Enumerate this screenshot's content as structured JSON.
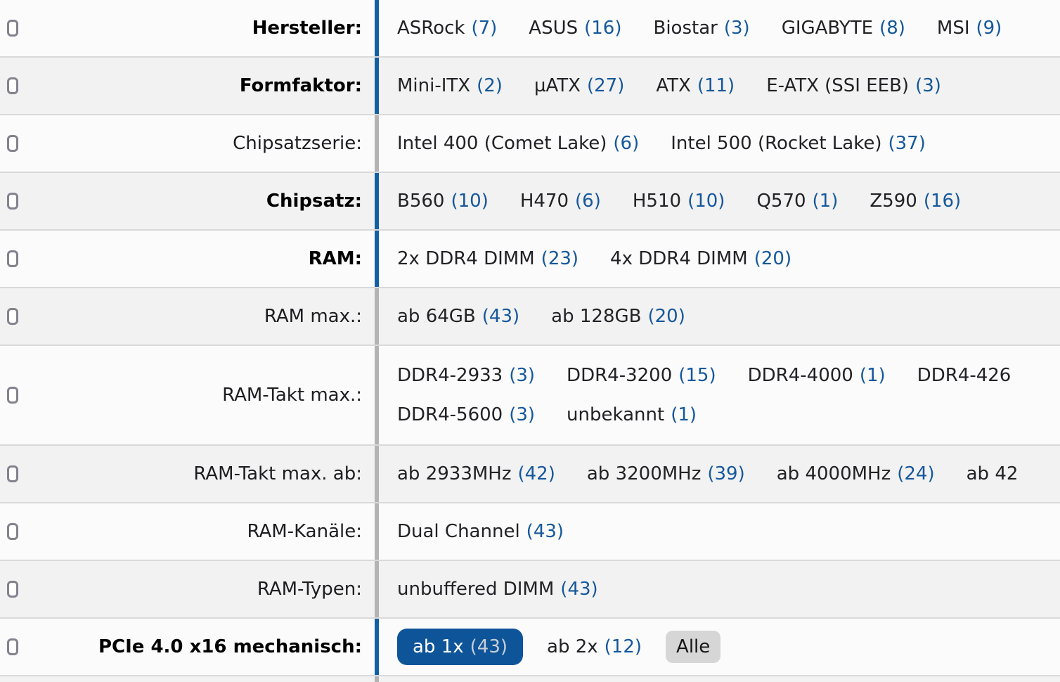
{
  "colors": {
    "link_blue": "#15589C",
    "active_bar_blue": "#1160A4",
    "selected_pill_bg": "#0E5499",
    "selected_pill_count": "#C8CED6",
    "alle_button_bg": "#D6D6D6",
    "row_bg": "#FBFBFB",
    "row_shaded_bg": "#F2F2F2",
    "row_border": "#D9D9D9",
    "inactive_bar_gray": "#B3B3B3",
    "checkbox_border": "#83838E"
  },
  "filter_table": {
    "rows": [
      {
        "label": "Hersteller:",
        "active": true,
        "lines": [
          [
            {
              "name": "ASRock",
              "count": "(7)"
            },
            {
              "name": "ASUS",
              "count": "(16)"
            },
            {
              "name": "Biostar",
              "count": "(3)"
            },
            {
              "name": "GIGABYTE",
              "count": "(8)"
            },
            {
              "name": "MSI",
              "count": "(9)"
            }
          ]
        ]
      },
      {
        "label": "Formfaktor:",
        "active": true,
        "lines": [
          [
            {
              "name": "Mini-ITX",
              "count": "(2)"
            },
            {
              "name": "µATX",
              "count": "(27)"
            },
            {
              "name": "ATX",
              "count": "(11)"
            },
            {
              "name": "E-ATX (SSI EEB)",
              "count": "(3)"
            }
          ]
        ]
      },
      {
        "label": "Chipsatzserie:",
        "active": false,
        "lines": [
          [
            {
              "name": "Intel 400 (Comet Lake)",
              "count": "(6)"
            },
            {
              "name": "Intel 500 (Rocket Lake)",
              "count": "(37)"
            }
          ]
        ]
      },
      {
        "label": "Chipsatz:",
        "active": true,
        "lines": [
          [
            {
              "name": "B560",
              "count": "(10)"
            },
            {
              "name": "H470",
              "count": "(6)"
            },
            {
              "name": "H510",
              "count": "(10)"
            },
            {
              "name": "Q570",
              "count": "(1)"
            },
            {
              "name": "Z590",
              "count": "(16)"
            }
          ]
        ]
      },
      {
        "label": "RAM:",
        "active": true,
        "lines": [
          [
            {
              "name": "2x DDR4 DIMM",
              "count": "(23)"
            },
            {
              "name": "4x DDR4 DIMM",
              "count": "(20)"
            }
          ]
        ]
      },
      {
        "label": "RAM max.:",
        "active": false,
        "lines": [
          [
            {
              "name": "ab 64GB",
              "count": "(43)"
            },
            {
              "name": "ab 128GB",
              "count": "(20)"
            }
          ]
        ]
      },
      {
        "label": "RAM-Takt max.:",
        "active": false,
        "lines": [
          [
            {
              "name": "DDR4-2933",
              "count": "(3)"
            },
            {
              "name": "DDR4-3200",
              "count": "(15)"
            },
            {
              "name": "DDR4-4000",
              "count": "(1)"
            },
            {
              "name": "DDR4-426",
              "count": ""
            }
          ],
          [
            {
              "name": "DDR4-5600",
              "count": "(3)"
            },
            {
              "name": "unbekannt",
              "count": "(1)"
            }
          ]
        ]
      },
      {
        "label": "RAM-Takt max. ab:",
        "active": false,
        "lines": [
          [
            {
              "name": "ab 2933MHz",
              "count": "(42)"
            },
            {
              "name": "ab 3200MHz",
              "count": "(39)"
            },
            {
              "name": "ab 4000MHz",
              "count": "(24)"
            },
            {
              "name": "ab 42",
              "count": ""
            }
          ]
        ]
      },
      {
        "label": "RAM-Kanäle:",
        "active": false,
        "lines": [
          [
            {
              "name": "Dual Channel",
              "count": "(43)"
            }
          ]
        ]
      },
      {
        "label": "RAM-Typen:",
        "active": false,
        "lines": [
          [
            {
              "name": "unbuffered DIMM",
              "count": "(43)"
            }
          ]
        ]
      },
      {
        "label": "PCIe 4.0 x16 mechanisch:",
        "active": true,
        "lines": [
          [
            {
              "name": "ab 1x",
              "count": "(43)",
              "type": "pill"
            },
            {
              "name": "ab 2x",
              "count": "(12)"
            },
            {
              "name": "Alle",
              "count": "",
              "type": "button"
            }
          ]
        ]
      },
      {
        "label": "",
        "active": false,
        "sliver": true,
        "lines": []
      }
    ]
  }
}
